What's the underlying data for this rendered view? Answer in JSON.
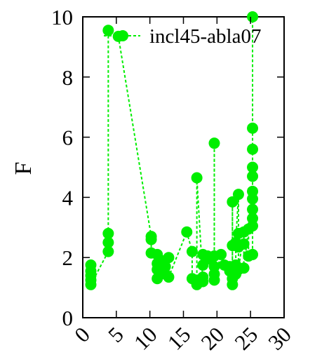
{
  "chart_data": {
    "type": "line",
    "title": "",
    "xlabel": "",
    "ylabel": "F",
    "xlim": [
      0,
      30
    ],
    "ylim": [
      0,
      10
    ],
    "xticks": [
      0,
      5,
      10,
      15,
      20,
      25,
      30
    ],
    "yticks": [
      0,
      2,
      4,
      6,
      8,
      10
    ],
    "xtick_labels": [
      "0",
      "5",
      "10",
      "15",
      "20",
      "25",
      "30"
    ],
    "ytick_labels": [
      "0",
      "2",
      "4",
      "6",
      "8",
      "10"
    ],
    "grid": false,
    "legend_position": "top-right",
    "series": [
      {
        "name": "incl45-abla07",
        "color": "#00ee00",
        "line_style": "dashed",
        "marker": "circle",
        "points": [
          [
            1.2,
            1.75
          ],
          [
            1.2,
            1.55
          ],
          [
            1.2,
            1.4
          ],
          [
            1.2,
            1.25
          ],
          [
            1.2,
            1.1
          ],
          [
            3.8,
            2.2
          ],
          [
            3.8,
            2.5
          ],
          [
            3.8,
            2.8
          ],
          [
            3.8,
            9.55
          ],
          [
            5.3,
            9.35
          ],
          [
            10.2,
            2.7
          ],
          [
            10.2,
            2.6
          ],
          [
            10.2,
            2.15
          ],
          [
            11.1,
            2.1
          ],
          [
            11.1,
            1.8
          ],
          [
            11.1,
            1.6
          ],
          [
            11.1,
            1.3
          ],
          [
            11.7,
            1.5
          ],
          [
            11.7,
            1.9
          ],
          [
            12.3,
            1.45
          ],
          [
            12.3,
            1.7
          ],
          [
            12.8,
            2.0
          ],
          [
            12.8,
            1.35
          ],
          [
            15.5,
            2.85
          ],
          [
            16.3,
            2.2
          ],
          [
            16.3,
            1.3
          ],
          [
            17.0,
            1.25
          ],
          [
            17.0,
            1.1
          ],
          [
            17.0,
            4.65
          ],
          [
            17.9,
            1.2
          ],
          [
            17.9,
            1.35
          ],
          [
            17.9,
            2.1
          ],
          [
            17.9,
            1.75
          ],
          [
            18.6,
            1.95
          ],
          [
            18.6,
            2.05
          ],
          [
            19.6,
            2.05
          ],
          [
            19.6,
            5.8
          ],
          [
            19.6,
            1.7
          ],
          [
            19.6,
            1.45
          ],
          [
            19.6,
            1.25
          ],
          [
            20.6,
            2.1
          ],
          [
            21.1,
            1.75
          ],
          [
            21.9,
            1.7
          ],
          [
            21.9,
            1.55
          ],
          [
            22.3,
            1.65
          ],
          [
            22.3,
            3.85
          ],
          [
            22.3,
            2.4
          ],
          [
            22.3,
            1.3
          ],
          [
            22.3,
            1.1
          ],
          [
            22.8,
            1.45
          ],
          [
            22.8,
            1.75
          ],
          [
            22.8,
            2.5
          ],
          [
            23.2,
            4.1
          ],
          [
            23.2,
            2.8
          ],
          [
            23.2,
            2.35
          ],
          [
            23.2,
            1.6
          ],
          [
            24.0,
            2.85
          ],
          [
            24.0,
            2.45
          ],
          [
            24.0,
            1.65
          ],
          [
            24.7,
            2.95
          ],
          [
            24.7,
            2.05
          ],
          [
            25.3,
            2.1
          ],
          [
            25.3,
            3.05
          ],
          [
            25.3,
            3.3
          ],
          [
            25.3,
            3.6
          ],
          [
            25.3,
            3.95
          ],
          [
            25.3,
            4.2
          ],
          [
            25.3,
            4.7
          ],
          [
            25.3,
            5.0
          ],
          [
            25.3,
            5.6
          ],
          [
            25.3,
            6.3
          ],
          [
            25.3,
            10.0
          ]
        ]
      }
    ]
  }
}
